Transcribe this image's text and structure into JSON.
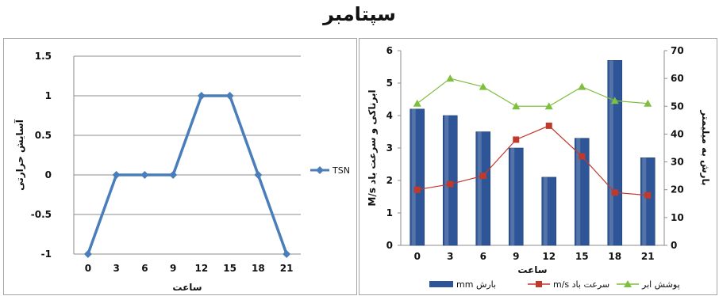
{
  "page_title": "سپتامبر",
  "chart_data": [
    {
      "type": "line",
      "title": "",
      "xlabel": "ساعت",
      "ylabel": "آسایش حرارتی",
      "categories": [
        "0",
        "3",
        "6",
        "9",
        "12",
        "15",
        "18",
        "21"
      ],
      "ylim": [
        -1,
        1.5
      ],
      "yticks": [
        "1.5",
        "1",
        "0.5",
        "0",
        "-0.5",
        "-1"
      ],
      "grid": true,
      "legend_position": "right",
      "series": [
        {
          "name": "TSN",
          "color": "#4a7ebb",
          "values": [
            -1,
            0,
            0,
            0,
            1,
            1,
            0,
            -1
          ]
        }
      ]
    },
    {
      "type": "bar",
      "title": "",
      "xlabel": "ساعت",
      "ylabel_left": "M/s ابرناکی و سرعت باد",
      "ylabel_right": "بارش به میلیمتر",
      "categories": [
        "0",
        "3",
        "6",
        "9",
        "12",
        "15",
        "18",
        "21"
      ],
      "ylim_left": [
        0,
        6
      ],
      "ylim_right": [
        0,
        70
      ],
      "yticks_left": [
        "6",
        "5",
        "4",
        "3",
        "2",
        "1",
        "0"
      ],
      "yticks_right": [
        "70",
        "60",
        "50",
        "40",
        "30",
        "20",
        "10",
        "0"
      ],
      "grid": false,
      "legend_position": "bottom",
      "series": [
        {
          "name": "mm بارش",
          "kind": "bar",
          "axis": "left",
          "color": "#2e5597",
          "values": [
            4.2,
            4.0,
            3.5,
            3.0,
            2.1,
            3.3,
            5.7,
            2.7
          ]
        },
        {
          "name": "m/s سرعت باد",
          "kind": "line",
          "axis": "right",
          "color": "#c0392b",
          "values": [
            20,
            22,
            25,
            38,
            43,
            32,
            19,
            18
          ]
        },
        {
          "name": "پوشش ابر",
          "kind": "line",
          "axis": "right",
          "color": "#7fbf3f",
          "values": [
            51,
            60,
            57,
            50,
            50,
            57,
            52,
            51
          ]
        }
      ]
    }
  ]
}
